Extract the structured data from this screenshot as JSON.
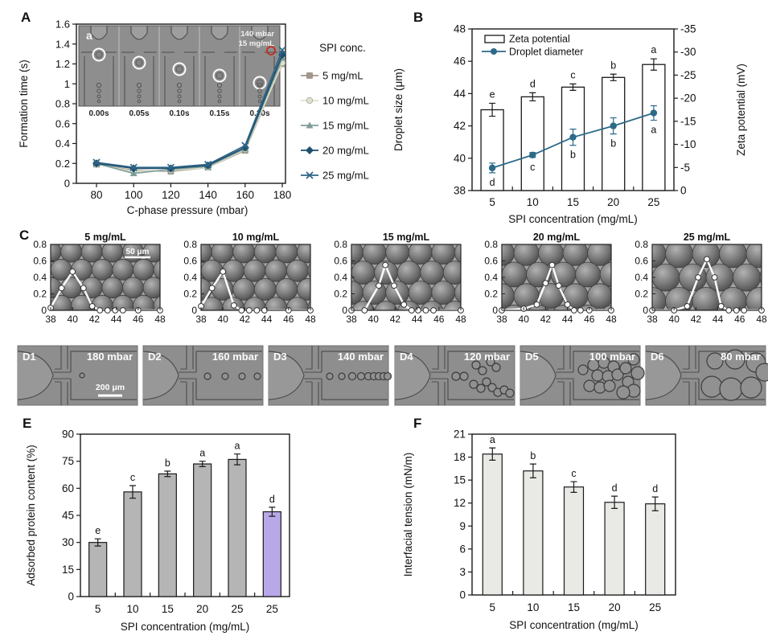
{
  "figure": {
    "panel_letters": {
      "A": "A",
      "B": "B",
      "C": "C",
      "E": "E",
      "F": "F"
    },
    "inset_a": {
      "label": "a",
      "pressure": "140 mbar",
      "conc": "15 mg/mL",
      "timestamps": [
        "0.00s",
        "0.05s",
        "0.10s",
        "0.15s",
        "0.20s"
      ]
    },
    "panel_d": {
      "items": [
        {
          "id": "D1",
          "pressure": "180 mbar",
          "scale_bar": "200 μm",
          "droplets": [
            [
              80,
              37,
              3
            ]
          ]
        },
        {
          "id": "D2",
          "pressure": "160 mbar",
          "droplets": [
            [
              80,
              38,
              4
            ],
            [
              102,
              38,
              4
            ],
            [
              123,
              38,
              4
            ],
            [
              142,
              38,
              4
            ]
          ]
        },
        {
          "id": "D3",
          "pressure": "140 mbar",
          "droplets": [
            [
              76,
              38,
              4
            ],
            [
              91,
              38,
              4
            ],
            [
              104,
              38,
              4.5
            ],
            [
              115,
              38,
              4.5
            ],
            [
              124,
              38,
              4.5
            ],
            [
              131,
              38,
              4.5
            ],
            [
              137,
              38,
              4.5
            ],
            [
              143,
              38,
              4.5
            ],
            [
              148,
              38,
              4.5
            ]
          ]
        },
        {
          "id": "D4",
          "pressure": "120 mbar",
          "droplets": [
            [
              76,
              38,
              5
            ],
            [
              86,
              38,
              5
            ],
            [
              101,
              24,
              5
            ],
            [
              109,
              31,
              5
            ],
            [
              119,
              20,
              5
            ],
            [
              126,
              27,
              5
            ],
            [
              98,
              48,
              5
            ],
            [
              107,
              53,
              5
            ],
            [
              114,
              45,
              5
            ],
            [
              121,
              52,
              5
            ],
            [
              128,
              58,
              5
            ],
            [
              136,
              55,
              5
            ],
            [
              143,
              59,
              5
            ]
          ]
        },
        {
          "id": "D5",
          "pressure": "100 mbar",
          "droplets": [
            [
              78,
              30,
              6
            ],
            [
              91,
              24,
              7
            ],
            [
              104,
              21,
              7
            ],
            [
              116,
              26,
              7
            ],
            [
              96,
              37,
              7
            ],
            [
              109,
              38,
              7
            ],
            [
              121,
              36,
              7
            ],
            [
              131,
              28,
              7
            ],
            [
              86,
              50,
              7
            ],
            [
              99,
              52,
              7
            ],
            [
              111,
              50,
              7
            ],
            [
              134,
              45,
              7
            ],
            [
              141,
              56,
              8
            ],
            [
              146,
              34,
              8
            ],
            [
              128,
              58,
              8
            ],
            [
              141,
              17,
              7
            ]
          ]
        },
        {
          "id": "D6",
          "pressure": "80 mbar",
          "droplets": [
            [
              86,
              19,
              10
            ],
            [
              111,
              17,
              12
            ],
            [
              137,
              21,
              12
            ],
            [
              82,
              51,
              13
            ],
            [
              106,
              54,
              14
            ],
            [
              131,
              52,
              13
            ],
            [
              148,
              33,
              11
            ]
          ]
        }
      ]
    }
  },
  "chart_data": [
    {
      "panel": "A",
      "type": "line",
      "title": "",
      "xlabel": "C-phase pressure (mbar)",
      "ylabel": "Formation time (s)",
      "legend_title": "SPI conc.",
      "x": [
        80,
        100,
        120,
        140,
        160,
        180
      ],
      "ylim": [
        0,
        1.6
      ],
      "ytick_labels": [
        "0",
        "0.2",
        "0.4",
        "0.6",
        "0.8",
        "1",
        "1.2",
        "1.4",
        "1.6"
      ],
      "series": [
        {
          "name": "5 mg/mL",
          "marker": "square",
          "color": "#a4968a",
          "values": [
            0.19,
            0.13,
            0.12,
            0.16,
            0.33,
            1.2
          ]
        },
        {
          "name": "10 mg/mL",
          "marker": "circle",
          "color": "#dde2cc",
          "values": [
            0.19,
            0.12,
            0.13,
            0.16,
            0.34,
            1.21
          ]
        },
        {
          "name": "15 mg/mL",
          "marker": "triangle",
          "color": "#7f9e99",
          "values": [
            0.2,
            0.1,
            0.14,
            0.17,
            0.35,
            1.26
          ]
        },
        {
          "name": "20 mg/mL",
          "marker": "diamond",
          "color": "#1e4f6e",
          "values": [
            0.2,
            0.15,
            0.15,
            0.18,
            0.36,
            1.29
          ]
        },
        {
          "name": "25 mg/mL",
          "marker": "x",
          "color": "#2f6587",
          "values": [
            0.21,
            0.16,
            0.16,
            0.19,
            0.38,
            1.34
          ]
        }
      ]
    },
    {
      "panel": "B",
      "type": "bar+line",
      "xlabel": "SPI concentration (mg/mL)",
      "ylabel_left": "Droplet size (μm)",
      "ylabel_right": "Zeta potential (mV)",
      "categories": [
        5,
        10,
        15,
        20,
        25
      ],
      "ylim_left": [
        38,
        48
      ],
      "yticks_left": [
        38,
        40,
        42,
        44,
        46,
        48
      ],
      "yticks_right": [
        0,
        -5,
        -10,
        -15,
        -20,
        -25,
        -30,
        -35
      ],
      "bars": {
        "name": "Zeta potential",
        "fill": "#ffffff",
        "values_um_scale": [
          43.0,
          43.8,
          44.4,
          45.0,
          45.8
        ],
        "values_mV": [
          -17.5,
          -20.3,
          -22.4,
          -24.5,
          -27.3
        ],
        "errors": [
          0.4,
          0.25,
          0.2,
          0.2,
          0.35
        ],
        "letters": [
          "e",
          "d",
          "c",
          "b",
          "a"
        ]
      },
      "line": {
        "name": "Droplet diameter",
        "color": "#2b6a88",
        "values": [
          39.4,
          40.2,
          41.3,
          42.0,
          42.8
        ],
        "errors": [
          0.3,
          0.15,
          0.5,
          0.5,
          0.45
        ],
        "letters": [
          "d",
          "c",
          "b",
          "b",
          "a"
        ]
      }
    },
    {
      "panel": "C",
      "type": "line-distribution",
      "ylim": [
        0,
        0.8
      ],
      "ytick_labels": [
        "0",
        "0.2",
        "0.4",
        "0.6",
        "0.8"
      ],
      "xticks": [
        38,
        40,
        42,
        44,
        46,
        48
      ],
      "subpanels": [
        {
          "title": "5 mg/mL",
          "scale_bar": "50 μm",
          "droplet_r": 13,
          "points": [
            [
              38,
              0.03
            ],
            [
              39,
              0.27
            ],
            [
              40,
              0.47
            ],
            [
              41,
              0.27
            ],
            [
              41.8,
              0.05
            ],
            [
              42.5,
              0
            ],
            [
              43.2,
              0
            ],
            [
              43.9,
              0
            ],
            [
              44.6,
              0
            ],
            [
              46,
              0
            ],
            [
              48,
              0
            ]
          ]
        },
        {
          "title": "10 mg/mL",
          "droplet_r": 13.5,
          "points": [
            [
              38,
              0.05
            ],
            [
              39,
              0.27
            ],
            [
              40,
              0.47
            ],
            [
              41,
              0.06
            ],
            [
              41.7,
              0
            ],
            [
              42.4,
              0
            ],
            [
              43.1,
              0
            ],
            [
              43.8,
              0
            ],
            [
              46,
              0
            ],
            [
              48,
              0
            ]
          ]
        },
        {
          "title": "15 mg/mL",
          "droplet_r": 14.5,
          "points": [
            [
              38,
              0
            ],
            [
              39.2,
              0
            ],
            [
              40.5,
              0.3
            ],
            [
              41.1,
              0.55
            ],
            [
              41.9,
              0.3
            ],
            [
              42.8,
              0.07
            ],
            [
              43.5,
              0
            ],
            [
              44.1,
              0
            ],
            [
              44.8,
              0
            ],
            [
              45.5,
              0
            ],
            [
              48,
              0
            ]
          ]
        },
        {
          "title": "20 mg/mL",
          "droplet_r": 15.5,
          "points": [
            [
              38,
              0
            ],
            [
              40,
              0.02
            ],
            [
              41.2,
              0.07
            ],
            [
              42,
              0.33
            ],
            [
              42.6,
              0.55
            ],
            [
              43.2,
              0.3
            ],
            [
              44,
              0.07
            ],
            [
              44.6,
              0
            ],
            [
              45.2,
              0
            ],
            [
              46,
              0
            ],
            [
              48,
              0
            ]
          ]
        },
        {
          "title": "25 mg/mL",
          "droplet_r": 17,
          "points": [
            [
              38,
              0
            ],
            [
              40,
              0
            ],
            [
              41.2,
              0.05
            ],
            [
              42.2,
              0.4
            ],
            [
              43,
              0.62
            ],
            [
              43.7,
              0.4
            ],
            [
              44.3,
              0.05
            ],
            [
              45,
              0
            ],
            [
              45.7,
              0
            ],
            [
              46.4,
              0
            ],
            [
              48,
              0
            ]
          ]
        }
      ]
    },
    {
      "panel": "E",
      "type": "bar",
      "xlabel": "SPI concentration (mg/mL)",
      "ylabel": "Adsorbed protein content (%)",
      "categories": [
        "5",
        "10",
        "15",
        "20",
        "25",
        "25"
      ],
      "values": [
        30,
        58,
        68,
        73.5,
        76,
        47
      ],
      "errors": [
        2,
        3.5,
        1.5,
        1.5,
        3,
        2.5
      ],
      "letters": [
        "e",
        "c",
        "b",
        "a",
        "a",
        "d"
      ],
      "bar_colors": [
        "#b5b5b5",
        "#b5b5b5",
        "#b5b5b5",
        "#b5b5b5",
        "#b5b5b5",
        "#b9a8e8"
      ],
      "ylim": [
        0,
        90
      ],
      "yticks": [
        0,
        15,
        30,
        45,
        60,
        75,
        90
      ]
    },
    {
      "panel": "F",
      "type": "bar",
      "xlabel": "SPI concentration (mg/mL)",
      "ylabel": "Interfacial tension (mN/m)",
      "categories": [
        "5",
        "10",
        "15",
        "20",
        "25"
      ],
      "values": [
        18.4,
        16.2,
        14.1,
        12.1,
        11.9
      ],
      "errors": [
        0.8,
        0.9,
        0.7,
        0.8,
        0.9
      ],
      "letters": [
        "a",
        "b",
        "c",
        "d",
        "d"
      ],
      "bar_colors": [
        "#e9e9e5",
        "#e9e9e5",
        "#e9e9e5",
        "#e9e9e5",
        "#e9e9e5"
      ],
      "ylim": [
        0,
        21
      ],
      "yticks": [
        0,
        3,
        6,
        9,
        12,
        15,
        18,
        21
      ]
    }
  ]
}
